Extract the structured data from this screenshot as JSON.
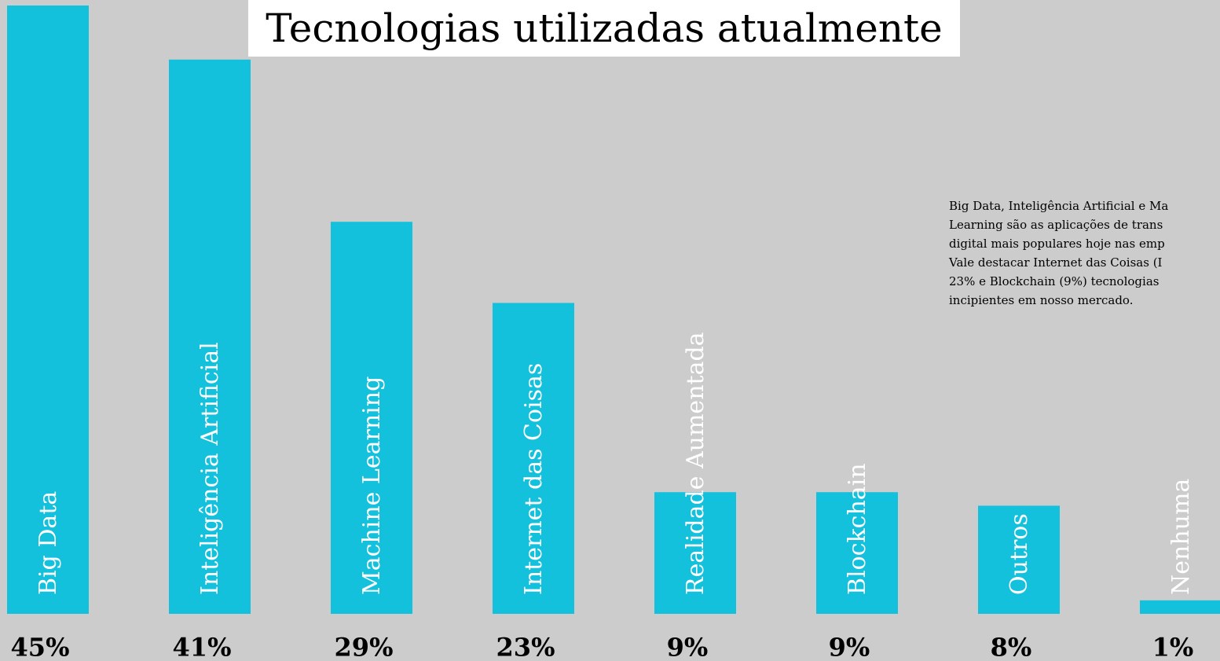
{
  "chart_data": {
    "type": "bar",
    "title": "Tecnologias utilizadas atualmente",
    "categories": [
      "Big Data",
      "Inteligência Artificial",
      "Machine Learning",
      "Internet das Coisas",
      "Realidade Aumentada",
      "Blockchain",
      "Outros",
      "Nenhuma"
    ],
    "values": [
      45,
      41,
      29,
      23,
      9,
      9,
      8,
      1
    ],
    "value_labels": [
      "45%",
      "41%",
      "29%",
      "23%",
      "9%",
      "9%",
      "8%",
      "1%"
    ],
    "color": "#14c1dc",
    "ylim": [
      0,
      45
    ],
    "annotation": [
      "Big Data, Inteligência Artificial e Ma",
      "Learning são as aplicações de trans",
      "digital mais populares hoje nas emp",
      "Vale destacar Internet das Coisas (I",
      "23% e Blockchain (9%) tecnologias",
      "incipientes em nosso mercado."
    ]
  }
}
